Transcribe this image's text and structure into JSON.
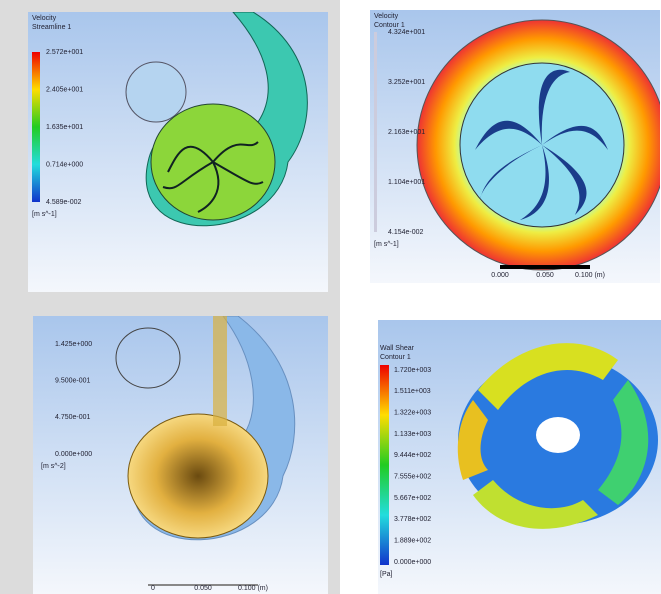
{
  "panels": [
    {
      "legend": {
        "title": "Velocity",
        "subtitle": "Streamline 1",
        "labels": [
          "2.572e+001",
          "2.405e+001",
          "1.635e+001",
          "0.714e+000",
          "4.589e-002"
        ],
        "unit": "[m s^-1]"
      }
    },
    {
      "legend": {
        "title": "Velocity",
        "subtitle": "Contour 1",
        "labels": [
          "4.324e+001",
          "3.252e+001",
          "2.163e+001",
          "1.104e+001",
          "4.154e-002"
        ],
        "unit": "[m s^-1]"
      },
      "scale": [
        "0.000",
        "0.050",
        "0.100 (m)"
      ]
    },
    {
      "legend": {
        "labels": [
          "1.425e+000",
          "9.500e-001",
          "4.750e-001",
          "0.000e+000"
        ],
        "unit": "[m s^-2]"
      },
      "scale": [
        "0",
        "0.050",
        "0.100 (m)"
      ]
    },
    {
      "legend": {
        "title": "Wall Shear",
        "subtitle": "Contour 1",
        "labels": [
          "1.720e+003",
          "1.511e+003",
          "1.322e+003",
          "1.133e+003",
          "9.444e+002",
          "7.555e+002",
          "5.667e+002",
          "3.778e+002",
          "1.889e+002",
          "0.000e+000"
        ],
        "unit": "[Pa]"
      }
    }
  ]
}
